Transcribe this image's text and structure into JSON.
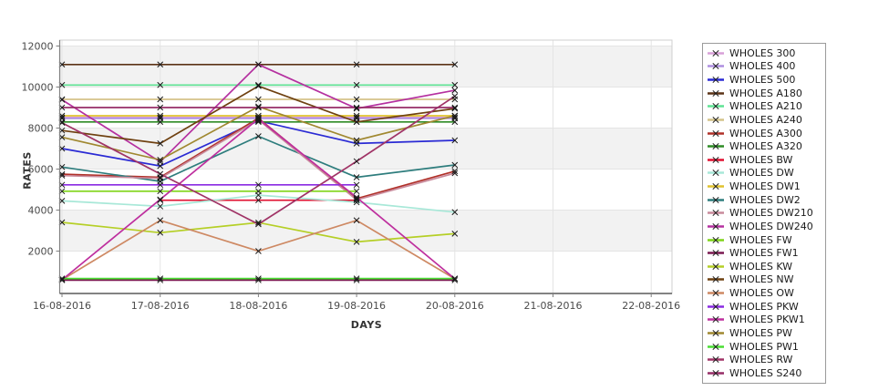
{
  "chart_data": {
    "type": "line",
    "title": "",
    "xlabel": "DAYS",
    "ylabel": "RATES",
    "x_categories": [
      "16-08-2016",
      "17-08-2016",
      "18-08-2016",
      "19-08-2016",
      "20-08-2016",
      "21-08-2016",
      "22-08-2016"
    ],
    "ylim": [
      0,
      12000
    ],
    "yticks": [
      2000,
      4000,
      6000,
      8000,
      10000,
      12000
    ],
    "grid": true,
    "band_fill": "#F2F2F2",
    "plot_background": "#FFFFFF",
    "marker": "x",
    "marker_color": "#1A1A1A",
    "legend_position": "right",
    "series": [
      {
        "name": "WHOLES 300",
        "color": "#D8A0D8",
        "values": [
          8520,
          8520,
          8520,
          8520,
          8520,
          null,
          null
        ]
      },
      {
        "name": "WHOLES 400",
        "color": "#AE8FE0",
        "values": [
          8470,
          8470,
          8470,
          8470,
          8470,
          null,
          null
        ]
      },
      {
        "name": "WHOLES 500",
        "color": "#2A2AD4",
        "values": [
          7000,
          6150,
          8350,
          7250,
          7400,
          null,
          null
        ]
      },
      {
        "name": "WHOLES A180",
        "color": "#5C3317",
        "values": [
          11100,
          11100,
          11100,
          11100,
          11100,
          null,
          null
        ]
      },
      {
        "name": "WHOLES A210",
        "color": "#5FE394",
        "values": [
          10100,
          10100,
          10100,
          10100,
          10100,
          null,
          null
        ]
      },
      {
        "name": "WHOLES A240",
        "color": "#D4C389",
        "values": [
          9400,
          9400,
          9400,
          9400,
          9400,
          null,
          null
        ]
      },
      {
        "name": "WHOLES A300",
        "color": "#B03028",
        "values": [
          5750,
          5600,
          8480,
          4560,
          5900,
          null,
          null
        ]
      },
      {
        "name": "WHOLES A320",
        "color": "#2E8B25",
        "values": [
          8300,
          8300,
          8300,
          8300,
          8300,
          null,
          null
        ]
      },
      {
        "name": "WHOLES BW",
        "color": "#E01030",
        "values": [
          null,
          4480,
          4480,
          4480,
          null,
          null,
          null
        ]
      },
      {
        "name": "WHOLES DW",
        "color": "#A8E8D8",
        "values": [
          4450,
          4180,
          4730,
          4380,
          3900,
          null,
          null
        ]
      },
      {
        "name": "WHOLES DW1",
        "color": "#E0C22E",
        "values": [
          8600,
          8600,
          8600,
          8600,
          8600,
          null,
          null
        ]
      },
      {
        "name": "WHOLES DW2",
        "color": "#2E7D7D",
        "values": [
          6100,
          5400,
          7600,
          5600,
          6200,
          null,
          null
        ]
      },
      {
        "name": "WHOLES DW210",
        "color": "#C98A9B",
        "values": [
          5680,
          5550,
          8400,
          4500,
          5800,
          null,
          null
        ]
      },
      {
        "name": "WHOLES DW240",
        "color": "#B530A0",
        "values": [
          9380,
          6350,
          11100,
          8950,
          9840,
          null,
          null
        ]
      },
      {
        "name": "WHOLES FW",
        "color": "#7FD418",
        "values": [
          4920,
          4920,
          4920,
          4920,
          null,
          null,
          null
        ]
      },
      {
        "name": "WHOLES FW1",
        "color": "#7A1950",
        "values": [
          580,
          580,
          580,
          580,
          580,
          null,
          null
        ]
      },
      {
        "name": "WHOLES KW",
        "color": "#B5CF26",
        "values": [
          3400,
          2900,
          3390,
          2450,
          2850,
          null,
          null
        ]
      },
      {
        "name": "WHOLES NW",
        "color": "#6F4111",
        "values": [
          7880,
          7250,
          10050,
          8300,
          8950,
          null,
          null
        ]
      },
      {
        "name": "WHOLES OW",
        "color": "#CE8963",
        "values": [
          600,
          3500,
          2000,
          3500,
          650,
          null,
          null
        ]
      },
      {
        "name": "WHOLES PKW",
        "color": "#8A2BE2",
        "values": [
          5230,
          5230,
          5230,
          5230,
          null,
          null,
          null
        ]
      },
      {
        "name": "WHOLES PKW1",
        "color": "#BE2F9E",
        "values": [
          600,
          4520,
          8450,
          4620,
          650,
          null,
          null
        ]
      },
      {
        "name": "WHOLES PW",
        "color": "#A08830",
        "values": [
          7550,
          6450,
          9050,
          7400,
          8600,
          null,
          null
        ]
      },
      {
        "name": "WHOLES PW1",
        "color": "#4ADD33",
        "values": [
          660,
          660,
          660,
          660,
          660,
          null,
          null
        ]
      },
      {
        "name": "WHOLES RW",
        "color": "#A03366",
        "values": [
          8260,
          5760,
          3310,
          6380,
          9550,
          null,
          null
        ]
      },
      {
        "name": "WHOLES S240",
        "color": "#962D67",
        "values": [
          9000,
          9000,
          9000,
          9000,
          9000,
          null,
          null
        ]
      }
    ]
  },
  "axes": {
    "y_title": "RATES",
    "x_title": "DAYS"
  }
}
